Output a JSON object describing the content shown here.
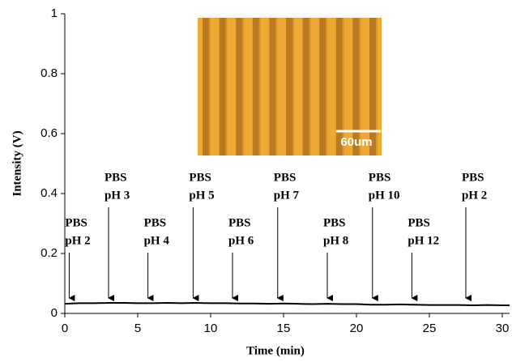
{
  "chart_data": {
    "type": "line",
    "xlabel": "Time (min)",
    "ylabel": "Intensity (V)",
    "xlim": [
      0,
      30.5
    ],
    "ylim": [
      0,
      1
    ],
    "xticks": [
      0,
      5,
      10,
      15,
      20,
      25,
      30
    ],
    "yticks": [
      0,
      0.2,
      0.4,
      0.6,
      0.8,
      1
    ],
    "color": "#000000",
    "x": [
      0,
      1,
      2,
      3,
      4,
      5,
      6,
      7,
      8,
      9,
      10,
      11,
      12,
      13,
      14,
      15,
      16,
      17,
      18,
      19,
      20,
      21,
      22,
      23,
      24,
      25,
      26,
      27,
      28,
      29,
      30,
      30.5
    ],
    "values": [
      0.032,
      0.034,
      0.034,
      0.035,
      0.035,
      0.034,
      0.034,
      0.035,
      0.034,
      0.035,
      0.034,
      0.034,
      0.033,
      0.033,
      0.032,
      0.033,
      0.032,
      0.031,
      0.032,
      0.031,
      0.031,
      0.029,
      0.029,
      0.03,
      0.029,
      0.028,
      0.028,
      0.028,
      0.027,
      0.028,
      0.027,
      0.027
    ],
    "inset_scale_label": "60um",
    "annotations": [
      {
        "x": 0.3,
        "lines": [
          "PBS",
          "pH 2"
        ]
      },
      {
        "x": 3.0,
        "lines": [
          "PBS",
          "pH 3"
        ]
      },
      {
        "x": 5.7,
        "lines": [
          "PBS",
          "pH 4"
        ]
      },
      {
        "x": 8.8,
        "lines": [
          "PBS",
          "pH 5"
        ]
      },
      {
        "x": 11.5,
        "lines": [
          "PBS",
          "pH 6"
        ]
      },
      {
        "x": 14.6,
        "lines": [
          "PBS",
          "pH 7"
        ]
      },
      {
        "x": 18.0,
        "lines": [
          "PBS",
          "pH 8"
        ]
      },
      {
        "x": 21.1,
        "lines": [
          "PBS",
          "pH 10"
        ]
      },
      {
        "x": 23.8,
        "lines": [
          "PBS",
          "pH 12"
        ]
      },
      {
        "x": 27.5,
        "lines": [
          "PBS",
          "pH 2"
        ]
      }
    ]
  }
}
